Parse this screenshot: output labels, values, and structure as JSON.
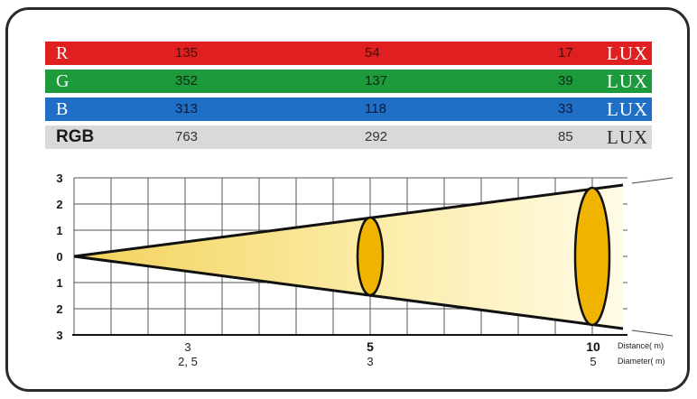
{
  "lux_table": {
    "rows": [
      {
        "name": "R",
        "values": [
          "135",
          "54",
          "17"
        ],
        "unit": "LUX",
        "color": "#e02020"
      },
      {
        "name": "G",
        "values": [
          "352",
          "137",
          "39"
        ],
        "unit": "LUX",
        "color": "#1c9a3c"
      },
      {
        "name": "B",
        "values": [
          "313",
          "118",
          "33"
        ],
        "unit": "LUX",
        "color": "#1f6fc7"
      },
      {
        "name": "RGB",
        "values": [
          "763",
          "292",
          "85"
        ],
        "unit": "LUX",
        "color": "#d9d9d9"
      }
    ]
  },
  "beam": {
    "y_ticks": [
      "3",
      "2",
      "1",
      "0",
      "1",
      "2",
      "3"
    ],
    "distance": [
      "3",
      "5",
      "10"
    ],
    "diameter": [
      "2, 5",
      "3",
      "5"
    ],
    "distance_label": "Distance( m)",
    "diameter_label": "Diameter( m)",
    "colors": {
      "light": "#fffbe0",
      "beam": "#f5d96b",
      "ellipse": "#f0b400"
    }
  }
}
